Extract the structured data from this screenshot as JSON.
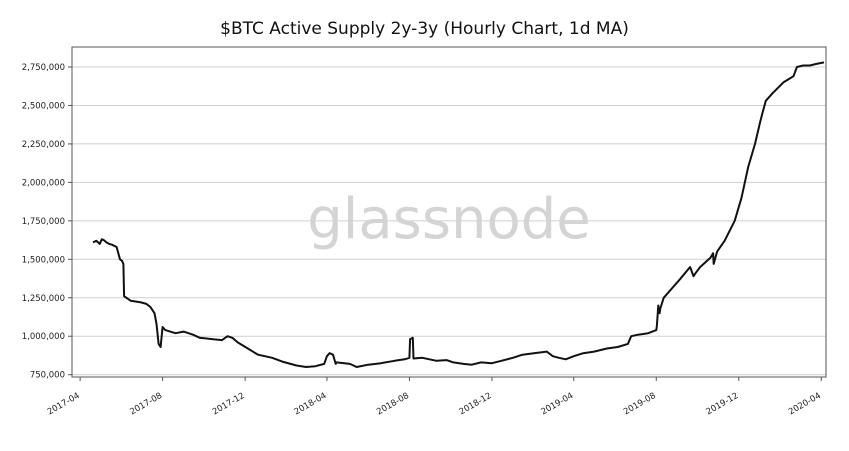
{
  "chart_data": {
    "type": "line",
    "title": "$BTC Active Supply 2y-3y (Hourly Chart, 1d MA)",
    "xlabel": "",
    "ylabel": "",
    "xlim": [
      "2017-03-20",
      "2020-04-08"
    ],
    "ylim": [
      735000,
      2880000
    ],
    "x_ticks": [
      "2017-04",
      "2017-08",
      "2017-12",
      "2018-04",
      "2018-08",
      "2018-12",
      "2019-04",
      "2019-08",
      "2019-12",
      "2020-04"
    ],
    "y_ticks": [
      750000,
      1000000,
      1250000,
      1500000,
      1750000,
      2000000,
      2250000,
      2500000,
      2750000
    ],
    "y_tick_labels": [
      "750,000",
      "1,000,000",
      "1,250,000",
      "1,500,000",
      "1,750,000",
      "2,000,000",
      "2,250,000",
      "2,500,000",
      "2,750,000"
    ],
    "grid": "horizontal",
    "line_color": "#111111",
    "watermark": "glassnode",
    "series": [
      {
        "x": [
          "2017-04-20",
          "2017-04-25",
          "2017-04-30",
          "2017-05-03",
          "2017-05-06",
          "2017-05-10",
          "2017-05-14",
          "2017-05-18",
          "2017-05-25",
          "2017-05-30",
          "2017-06-02",
          "2017-06-04",
          "2017-06-05",
          "2017-06-15",
          "2017-06-30",
          "2017-07-08",
          "2017-07-14",
          "2017-07-20",
          "2017-07-23",
          "2017-07-26",
          "2017-07-29",
          "2017-08-01",
          "2017-08-05",
          "2017-08-20",
          "2017-09-01",
          "2017-09-15",
          "2017-09-25",
          "2017-10-05",
          "2017-10-15",
          "2017-10-28",
          "2017-11-05",
          "2017-11-12",
          "2017-11-20",
          "2017-12-05",
          "2017-12-20",
          "2018-01-10",
          "2018-01-25",
          "2018-02-15",
          "2018-03-01",
          "2018-03-15",
          "2018-03-28",
          "2018-04-01",
          "2018-04-05",
          "2018-04-10",
          "2018-04-14",
          "2018-04-15",
          "2018-05-05",
          "2018-05-15",
          "2018-06-01",
          "2018-06-20",
          "2018-07-10",
          "2018-07-25",
          "2018-08-01",
          "2018-08-02",
          "2018-08-06",
          "2018-08-07",
          "2018-08-20",
          "2018-09-10",
          "2018-09-25",
          "2018-10-05",
          "2018-10-20",
          "2018-11-01",
          "2018-11-15",
          "2018-12-01",
          "2018-12-15",
          "2019-01-01",
          "2019-01-15",
          "2019-02-01",
          "2019-02-20",
          "2019-03-01",
          "2019-03-10",
          "2019-03-20",
          "2019-04-01",
          "2019-04-15",
          "2019-05-01",
          "2019-05-20",
          "2019-06-05",
          "2019-06-20",
          "2019-06-25",
          "2019-07-05",
          "2019-07-20",
          "2019-08-01",
          "2019-08-02",
          "2019-08-04",
          "2019-08-06",
          "2019-08-07",
          "2019-08-12",
          "2019-08-20",
          "2019-09-05",
          "2019-09-20",
          "2019-09-25",
          "2019-09-28",
          "2019-10-05",
          "2019-10-20",
          "2019-10-24",
          "2019-10-25",
          "2019-10-30",
          "2019-11-10",
          "2019-11-25",
          "2019-12-05",
          "2019-12-15",
          "2019-12-25",
          "2020-01-01",
          "2020-01-05",
          "2020-01-10",
          "2020-01-20",
          "2020-02-05",
          "2020-02-20",
          "2020-02-25",
          "2020-03-05",
          "2020-03-15",
          "2020-03-25",
          "2020-04-05"
        ],
        "y": [
          1610000,
          1620000,
          1600000,
          1630000,
          1625000,
          1610000,
          1600000,
          1595000,
          1580000,
          1500000,
          1490000,
          1470000,
          1260000,
          1230000,
          1220000,
          1210000,
          1190000,
          1150000,
          1080000,
          950000,
          930000,
          1060000,
          1040000,
          1020000,
          1030000,
          1010000,
          990000,
          985000,
          980000,
          975000,
          1000000,
          990000,
          960000,
          920000,
          880000,
          860000,
          835000,
          810000,
          800000,
          805000,
          820000,
          870000,
          890000,
          880000,
          820000,
          830000,
          820000,
          800000,
          815000,
          825000,
          840000,
          850000,
          860000,
          980000,
          990000,
          855000,
          860000,
          840000,
          845000,
          830000,
          820000,
          815000,
          830000,
          825000,
          840000,
          860000,
          880000,
          890000,
          900000,
          870000,
          860000,
          850000,
          870000,
          890000,
          900000,
          920000,
          930000,
          950000,
          1000000,
          1010000,
          1020000,
          1040000,
          1070000,
          1200000,
          1150000,
          1180000,
          1250000,
          1290000,
          1370000,
          1450000,
          1390000,
          1410000,
          1450000,
          1510000,
          1540000,
          1470000,
          1550000,
          1620000,
          1750000,
          1900000,
          2100000,
          2250000,
          2380000,
          2450000,
          2530000,
          2580000,
          2650000,
          2690000,
          2750000,
          2760000,
          2760000,
          2770000,
          2780000
        ]
      }
    ]
  }
}
